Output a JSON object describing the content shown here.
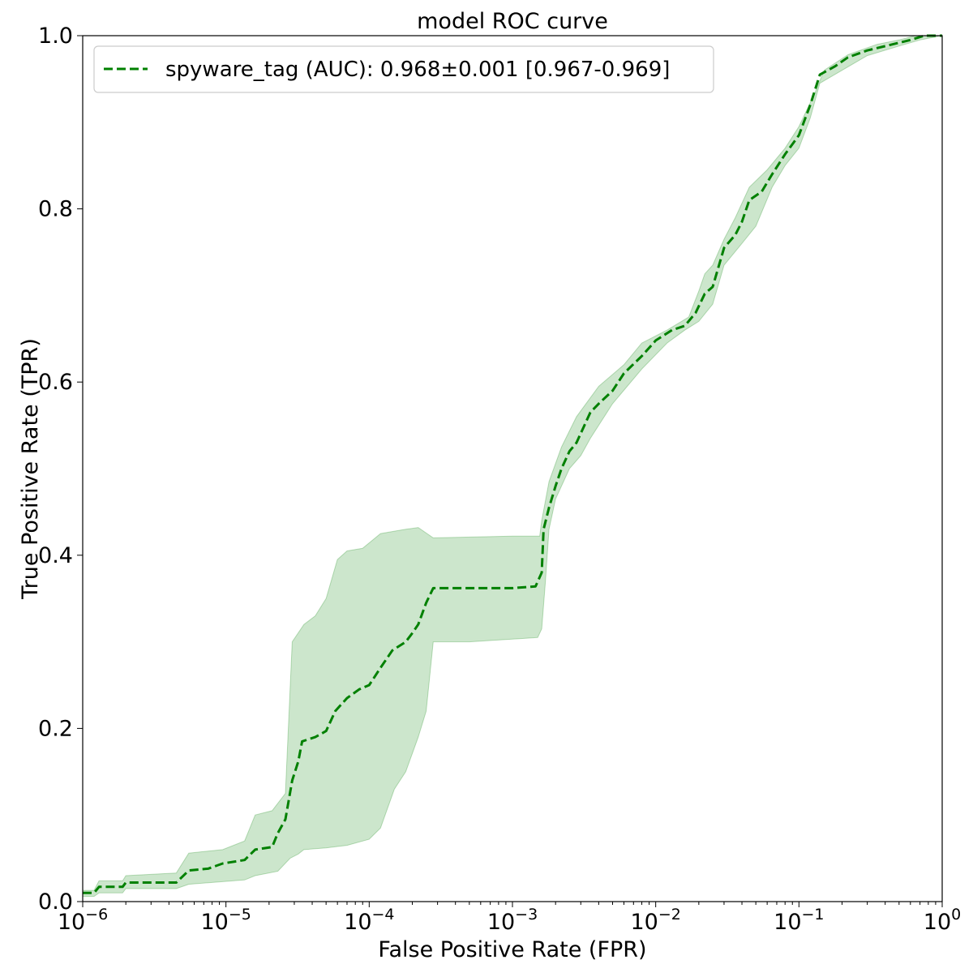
{
  "colors": {
    "series": "#008000",
    "band": "#008000",
    "axis": "#000000",
    "background": "#ffffff"
  },
  "chart_data": {
    "type": "line",
    "title": "model ROC curve",
    "xlabel": "False Positive Rate (FPR)",
    "ylabel": "True Positive Rate (TPR)",
    "xscale": "log",
    "xlim": [
      1e-06,
      1
    ],
    "ylim": [
      0,
      1
    ],
    "grid": false,
    "legend_position": "top-left",
    "x_ticks": [
      {
        "value": 1e-06,
        "base": "10",
        "exp": "−6"
      },
      {
        "value": 1e-05,
        "base": "10",
        "exp": "−5"
      },
      {
        "value": 0.0001,
        "base": "10",
        "exp": "−4"
      },
      {
        "value": 0.001,
        "base": "10",
        "exp": "−3"
      },
      {
        "value": 0.01,
        "base": "10",
        "exp": "−2"
      },
      {
        "value": 0.1,
        "base": "10",
        "exp": "−1"
      },
      {
        "value": 1,
        "base": "10",
        "exp": "0"
      }
    ],
    "y_ticks": [
      {
        "value": 0.0,
        "label": "0.0"
      },
      {
        "value": 0.2,
        "label": "0.2"
      },
      {
        "value": 0.4,
        "label": "0.4"
      },
      {
        "value": 0.6,
        "label": "0.6"
      },
      {
        "value": 0.8,
        "label": "0.8"
      },
      {
        "value": 1.0,
        "label": "1.0"
      }
    ],
    "series": [
      {
        "name": "spyware_tag (AUC): 0.968±0.001 [0.967-0.969]",
        "style": "dashed",
        "color": "#008000",
        "points": [
          [
            1e-06,
            0.01
          ],
          [
            1.2e-06,
            0.01
          ],
          [
            1.3e-06,
            0.017
          ],
          [
            1.9e-06,
            0.017
          ],
          [
            2e-06,
            0.022
          ],
          [
            4.5e-06,
            0.022
          ],
          [
            5.5e-06,
            0.036
          ],
          [
            7.5e-06,
            0.038
          ],
          [
            9.5e-06,
            0.044
          ],
          [
            1.35e-05,
            0.048
          ],
          [
            1.6e-05,
            0.06
          ],
          [
            2.1e-05,
            0.063
          ],
          [
            2.3e-05,
            0.079
          ],
          [
            2.6e-05,
            0.095
          ],
          [
            2.9e-05,
            0.14
          ],
          [
            3.2e-05,
            0.162
          ],
          [
            3.4e-05,
            0.185
          ],
          [
            4.2e-05,
            0.19
          ],
          [
            5e-05,
            0.197
          ],
          [
            5.8e-05,
            0.22
          ],
          [
            7e-05,
            0.235
          ],
          [
            8.5e-05,
            0.245
          ],
          [
            0.0001,
            0.25
          ],
          [
            0.00012,
            0.27
          ],
          [
            0.000145,
            0.29
          ],
          [
            0.00018,
            0.3
          ],
          [
            0.0002,
            0.31
          ],
          [
            0.00022,
            0.32
          ],
          [
            0.00025,
            0.345
          ],
          [
            0.00028,
            0.362
          ],
          [
            0.0005,
            0.362
          ],
          [
            0.001,
            0.362
          ],
          [
            0.00145,
            0.364
          ],
          [
            0.0016,
            0.38
          ],
          [
            0.00165,
            0.43
          ],
          [
            0.0018,
            0.455
          ],
          [
            0.002,
            0.48
          ],
          [
            0.0022,
            0.5
          ],
          [
            0.0025,
            0.52
          ],
          [
            0.0028,
            0.53
          ],
          [
            0.0035,
            0.565
          ],
          [
            0.004,
            0.575
          ],
          [
            0.005,
            0.59
          ],
          [
            0.006,
            0.61
          ],
          [
            0.008,
            0.63
          ],
          [
            0.01,
            0.648
          ],
          [
            0.013,
            0.66
          ],
          [
            0.016,
            0.665
          ],
          [
            0.019,
            0.68
          ],
          [
            0.022,
            0.702
          ],
          [
            0.025,
            0.71
          ],
          [
            0.03,
            0.755
          ],
          [
            0.036,
            0.77
          ],
          [
            0.04,
            0.785
          ],
          [
            0.045,
            0.81
          ],
          [
            0.055,
            0.82
          ],
          [
            0.065,
            0.84
          ],
          [
            0.08,
            0.863
          ],
          [
            0.1,
            0.885
          ],
          [
            0.12,
            0.92
          ],
          [
            0.14,
            0.955
          ],
          [
            0.18,
            0.965
          ],
          [
            0.22,
            0.975
          ],
          [
            0.3,
            0.983
          ],
          [
            0.45,
            0.99
          ],
          [
            0.6,
            0.995
          ],
          [
            0.75,
            1.0
          ],
          [
            1,
            1.0
          ]
        ],
        "band_upper": [
          [
            1e-06,
            0.013
          ],
          [
            1.2e-06,
            0.013
          ],
          [
            1.3e-06,
            0.024
          ],
          [
            1.9e-06,
            0.024
          ],
          [
            2e-06,
            0.03
          ],
          [
            4.5e-06,
            0.033
          ],
          [
            5.5e-06,
            0.056
          ],
          [
            9.5e-06,
            0.06
          ],
          [
            1.35e-05,
            0.07
          ],
          [
            1.6e-05,
            0.1
          ],
          [
            2.1e-05,
            0.105
          ],
          [
            2.6e-05,
            0.125
          ],
          [
            2.9e-05,
            0.3
          ],
          [
            3.5e-05,
            0.32
          ],
          [
            4.2e-05,
            0.33
          ],
          [
            5e-05,
            0.35
          ],
          [
            6e-05,
            0.395
          ],
          [
            7e-05,
            0.405
          ],
          [
            9e-05,
            0.408
          ],
          [
            0.00012,
            0.425
          ],
          [
            0.00018,
            0.43
          ],
          [
            0.00022,
            0.432
          ],
          [
            0.00028,
            0.42
          ],
          [
            0.001,
            0.422
          ],
          [
            0.00155,
            0.422
          ],
          [
            0.0016,
            0.44
          ],
          [
            0.0018,
            0.485
          ],
          [
            0.0022,
            0.525
          ],
          [
            0.0028,
            0.56
          ],
          [
            0.004,
            0.595
          ],
          [
            0.006,
            0.62
          ],
          [
            0.008,
            0.645
          ],
          [
            0.012,
            0.66
          ],
          [
            0.017,
            0.675
          ],
          [
            0.02,
            0.705
          ],
          [
            0.022,
            0.725
          ],
          [
            0.025,
            0.735
          ],
          [
            0.03,
            0.765
          ],
          [
            0.036,
            0.79
          ],
          [
            0.045,
            0.825
          ],
          [
            0.06,
            0.845
          ],
          [
            0.08,
            0.87
          ],
          [
            0.1,
            0.895
          ],
          [
            0.13,
            0.935
          ],
          [
            0.15,
            0.96
          ],
          [
            0.22,
            0.978
          ],
          [
            0.35,
            0.99
          ],
          [
            0.5,
            0.995
          ],
          [
            0.65,
            1.0
          ],
          [
            1,
            1.0
          ]
        ],
        "band_lower": [
          [
            1e-06,
            0.006
          ],
          [
            1.2e-06,
            0.006
          ],
          [
            1.3e-06,
            0.01
          ],
          [
            1.9e-06,
            0.01
          ],
          [
            2e-06,
            0.015
          ],
          [
            4.5e-06,
            0.015
          ],
          [
            5.5e-06,
            0.02
          ],
          [
            1.35e-05,
            0.025
          ],
          [
            1.6e-05,
            0.03
          ],
          [
            2.3e-05,
            0.035
          ],
          [
            2.8e-05,
            0.05
          ],
          [
            3.2e-05,
            0.055
          ],
          [
            3.5e-05,
            0.06
          ],
          [
            5e-05,
            0.062
          ],
          [
            7e-05,
            0.065
          ],
          [
            0.0001,
            0.072
          ],
          [
            0.00012,
            0.085
          ],
          [
            0.00015,
            0.13
          ],
          [
            0.00018,
            0.15
          ],
          [
            0.00022,
            0.19
          ],
          [
            0.00025,
            0.22
          ],
          [
            0.00028,
            0.3
          ],
          [
            0.0005,
            0.3
          ],
          [
            0.0015,
            0.305
          ],
          [
            0.0016,
            0.315
          ],
          [
            0.0017,
            0.37
          ],
          [
            0.0018,
            0.43
          ],
          [
            0.002,
            0.465
          ],
          [
            0.0025,
            0.5
          ],
          [
            0.003,
            0.515
          ],
          [
            0.0035,
            0.535
          ],
          [
            0.005,
            0.575
          ],
          [
            0.008,
            0.615
          ],
          [
            0.012,
            0.645
          ],
          [
            0.016,
            0.66
          ],
          [
            0.02,
            0.67
          ],
          [
            0.025,
            0.69
          ],
          [
            0.03,
            0.735
          ],
          [
            0.04,
            0.76
          ],
          [
            0.05,
            0.78
          ],
          [
            0.065,
            0.825
          ],
          [
            0.08,
            0.85
          ],
          [
            0.1,
            0.87
          ],
          [
            0.12,
            0.905
          ],
          [
            0.14,
            0.945
          ],
          [
            0.2,
            0.96
          ],
          [
            0.3,
            0.977
          ],
          [
            0.5,
            0.988
          ],
          [
            0.7,
            0.995
          ],
          [
            1,
            1.0
          ]
        ]
      }
    ]
  }
}
